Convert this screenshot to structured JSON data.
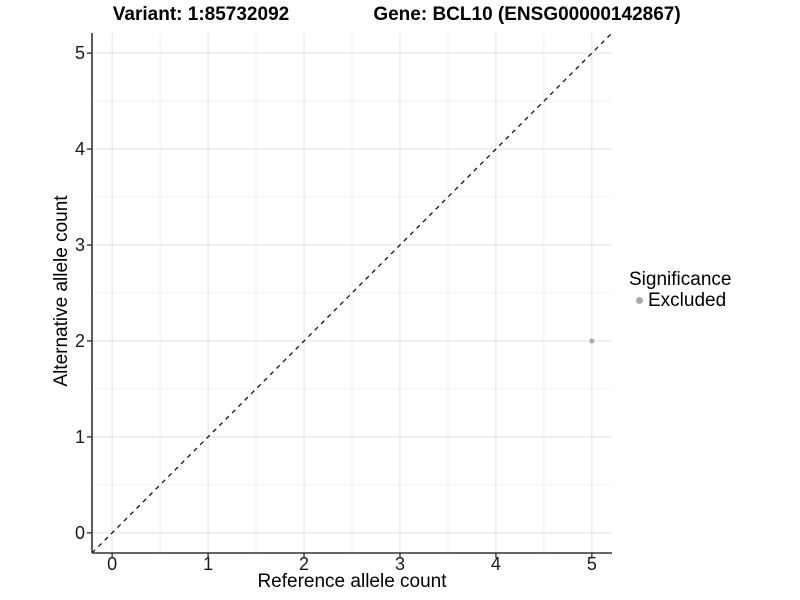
{
  "chart_data": {
    "type": "scatter",
    "title_left": "Variant: 1:85732092",
    "title_right": "Gene: BCL10 (ENSG00000142867)",
    "xlabel": "Reference allele count",
    "ylabel": "Alternative allele count",
    "xlim": [
      -0.21,
      5.21
    ],
    "ylim": [
      -0.21,
      5.21
    ],
    "x_ticks": [
      0,
      1,
      2,
      3,
      4,
      5
    ],
    "y_ticks": [
      0,
      1,
      2,
      3,
      4,
      5
    ],
    "grid": {
      "major": true,
      "minor": true
    },
    "points": [
      {
        "x": 5,
        "y": 2,
        "significance": "Excluded"
      }
    ],
    "reference_line": {
      "equation": "y = x",
      "style": "dashed"
    },
    "legend": {
      "title": "Significance",
      "position": "right",
      "items": [
        {
          "label": "Excluded",
          "color": "#aaaaaa",
          "marker": "circle"
        }
      ]
    }
  },
  "colors": {
    "background": "#ffffff",
    "text": "#000000",
    "axis_line": "#333333",
    "major_grid": "#e3e3e3",
    "minor_grid": "#f0f0f0",
    "point": "#aaaaaa",
    "reference_line": "#000000"
  }
}
